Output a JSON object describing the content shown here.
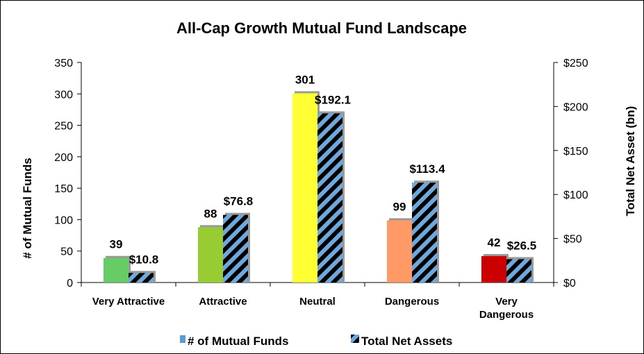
{
  "chart_data": {
    "type": "bar",
    "title": "All-Cap Growth Mutual Fund Landscape",
    "categories": [
      "Very Attractive",
      "Attractive",
      "Neutral",
      "Dangerous",
      "Very Dangerous"
    ],
    "category_lines": [
      [
        "Very Attractive"
      ],
      [
        "Attractive"
      ],
      [
        "Neutral"
      ],
      [
        "Dangerous"
      ],
      [
        "Very",
        "Dangerous"
      ]
    ],
    "series": [
      {
        "name": "# of Mutual Funds",
        "axis": "left",
        "values": [
          39,
          88,
          301,
          99,
          42
        ],
        "labels": [
          "39",
          "88",
          "301",
          "99",
          "42"
        ],
        "colors": [
          "#66cc66",
          "#99cc33",
          "#ffff33",
          "#ff9966",
          "#cc0000"
        ]
      },
      {
        "name": "Total Net Assets",
        "axis": "right",
        "values": [
          10.8,
          76.8,
          192.1,
          113.4,
          26.5
        ],
        "labels": [
          "$10.8",
          "$76.8",
          "$192.1",
          "$113.4",
          "$26.5"
        ],
        "pattern_colors": [
          "#000000",
          "#6fa8dc"
        ]
      }
    ],
    "ylabel": "# of Mutual Funds",
    "ylim": [
      0,
      350
    ],
    "yticks": [
      0,
      50,
      100,
      150,
      200,
      250,
      300,
      350
    ],
    "y2label": "Total Net Asset (bn)",
    "y2lim": [
      0,
      250
    ],
    "y2ticks": [
      "$0",
      "$50",
      "$100",
      "$150",
      "$200",
      "$250"
    ],
    "legend_position": "bottom",
    "legend_swatch_color": "#5b9bd5",
    "grid": false
  }
}
